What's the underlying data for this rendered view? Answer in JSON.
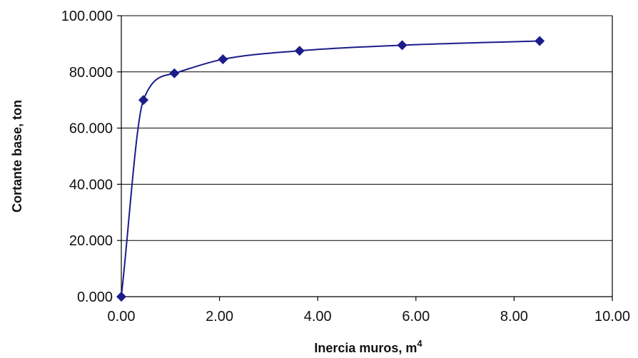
{
  "chart_data": {
    "type": "line",
    "title": "",
    "xlabel": "Inercia muros, m",
    "xlabel_superscript": "4",
    "ylabel": "Cortante base, ton",
    "xlim": [
      0,
      10
    ],
    "ylim": [
      0,
      100
    ],
    "x_ticks": [
      0,
      2,
      4,
      6,
      8,
      10
    ],
    "x_tick_labels": [
      "0.00",
      "2.00",
      "4.00",
      "6.00",
      "8.00",
      "10.00"
    ],
    "y_ticks": [
      0,
      20,
      40,
      60,
      80,
      100
    ],
    "y_tick_labels": [
      "0.000",
      "20.000",
      "40.000",
      "60.000",
      "80.000",
      "100.000"
    ],
    "grid": "horizontal",
    "legend": "none",
    "series": [
      {
        "color": "#1c1c8a",
        "marker": "diamond",
        "x": [
          0.0,
          0.45,
          1.08,
          2.07,
          3.63,
          5.72,
          8.52
        ],
        "y": [
          0.0,
          70.0,
          79.5,
          84.5,
          87.5,
          89.5,
          91.0
        ]
      }
    ]
  }
}
